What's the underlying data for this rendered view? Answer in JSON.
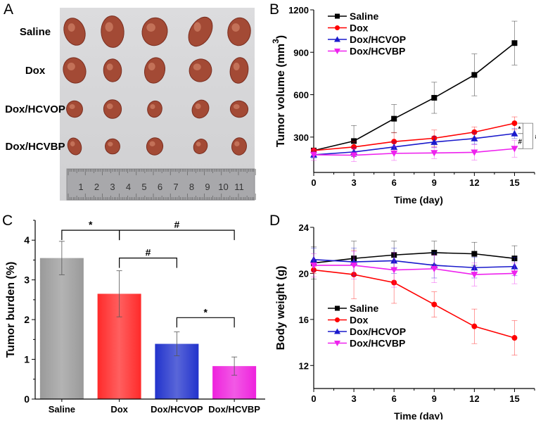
{
  "panel_labels": [
    "A",
    "B",
    "C",
    "D"
  ],
  "photo": {
    "row_labels": [
      "Saline",
      "Dox",
      "Dox/HCVOP",
      "Dox/HCVBP"
    ],
    "ruler_labels": [
      "1",
      "2",
      "3",
      "4",
      "5",
      "6",
      "7",
      "8",
      "9",
      "10",
      "11"
    ],
    "background_color": "#d6d6d8",
    "tumor_color": "#a34a35"
  },
  "chart_data": [
    {
      "panel": "B",
      "type": "line",
      "xlabel": "Time  (day)",
      "ylabel": "Tumor volume (mm",
      "ylabel_superscript": "3",
      "ylabel_close": ")",
      "x": [
        0,
        3,
        6,
        9,
        12,
        15
      ],
      "xlim": [
        0,
        16.5
      ],
      "ylim": [
        50,
        1200
      ],
      "xticks": [
        0,
        3,
        6,
        9,
        12,
        15
      ],
      "yticks": [
        300,
        600,
        900,
        1200
      ],
      "grid": false,
      "legend": "top-left",
      "series": [
        {
          "name": "Saline",
          "color": "#000000",
          "marker": "square",
          "values": [
            205,
            272,
            430,
            578,
            740,
            965
          ],
          "errors": [
            0,
            110,
            100,
            110,
            148,
            155
          ]
        },
        {
          "name": "Dox",
          "color": "#ff0000",
          "marker": "circle",
          "values": [
            205,
            230,
            268,
            292,
            335,
            398
          ],
          "errors": [
            0,
            40,
            65,
            58,
            37,
            45
          ]
        },
        {
          "name": "Dox/HCVOP",
          "color": "#1a1acc",
          "marker": "triangle-up",
          "values": [
            175,
            195,
            230,
            265,
            290,
            325
          ],
          "errors": [
            25,
            30,
            35,
            40,
            40,
            35
          ]
        },
        {
          "name": "Dox/HCVBP",
          "color": "#ee22ee",
          "marker": "triangle-down",
          "values": [
            175,
            172,
            185,
            188,
            192,
            218
          ],
          "errors": [
            40,
            45,
            50,
            40,
            55,
            60
          ]
        }
      ],
      "significance": [
        {
          "from": "Dox",
          "to": "Dox/HCVOP",
          "label": "*"
        },
        {
          "from": "Dox/HCVOP",
          "to": "Dox/HCVBP",
          "label": "#"
        },
        {
          "from": "Dox",
          "to": "Dox/HCVBP",
          "label": "#"
        }
      ]
    },
    {
      "panel": "C",
      "type": "bar",
      "xlabel": "",
      "ylabel": "Tumor burden (%)",
      "categories": [
        "Saline",
        "Dox",
        "Dox/HCVOP",
        "Dox/HCVBP"
      ],
      "values": [
        3.55,
        2.65,
        1.39,
        0.83
      ],
      "errors": [
        0.42,
        0.58,
        0.3,
        0.23
      ],
      "colors": [
        "#9a9a9a",
        "#ff2a2a",
        "#2233cc",
        "#ee22dd"
      ],
      "ylim": [
        0,
        4.5
      ],
      "yticks": [
        0,
        1,
        2,
        3,
        4
      ],
      "grid": false,
      "significance": [
        {
          "from": "Saline",
          "to": "Dox",
          "label": "*",
          "level": 4.25
        },
        {
          "from": "Dox",
          "to": "Dox/HCVBP",
          "label": "#",
          "level": 4.25
        },
        {
          "from": "Dox",
          "to": "Dox/HCVOP",
          "label": "#",
          "level": 3.55
        },
        {
          "from": "Dox/HCVOP",
          "to": "Dox/HCVBP",
          "label": "*",
          "level": 2.05
        }
      ]
    },
    {
      "panel": "D",
      "type": "line",
      "xlabel": "Time  (day)",
      "ylabel": "Body weight (g)",
      "x": [
        0,
        3,
        6,
        9,
        12,
        15
      ],
      "xlim": [
        0,
        16.5
      ],
      "ylim": [
        10,
        24
      ],
      "xticks": [
        0,
        3,
        6,
        9,
        12,
        15
      ],
      "yticks": [
        12,
        16,
        20,
        24
      ],
      "grid": false,
      "legend": "bottom-left",
      "series": [
        {
          "name": "Saline",
          "color": "#000000",
          "marker": "square",
          "values": [
            20.9,
            21.3,
            21.6,
            21.8,
            21.7,
            21.3
          ],
          "errors": [
            1.4,
            1.5,
            1.2,
            1.0,
            1.0,
            1.1
          ]
        },
        {
          "name": "Dox",
          "color": "#ff0000",
          "marker": "circle",
          "values": [
            20.3,
            19.9,
            19.2,
            17.3,
            15.4,
            14.4
          ],
          "errors": [
            0.3,
            2.1,
            1.8,
            1.1,
            1.5,
            1.5
          ]
        },
        {
          "name": "Dox/HCVOP",
          "color": "#1a1acc",
          "marker": "triangle-up",
          "values": [
            21.2,
            21.0,
            21.1,
            20.7,
            20.5,
            20.6
          ],
          "errors": [
            1.0,
            1.2,
            1.1,
            1.1,
            0.9,
            0.8
          ]
        },
        {
          "name": "Dox/HCVBP",
          "color": "#ee22ee",
          "marker": "triangle-down",
          "values": [
            20.7,
            20.7,
            20.3,
            20.4,
            19.9,
            20.0
          ],
          "errors": [
            1.0,
            1.2,
            1.5,
            1.2,
            1.0,
            0.9
          ]
        }
      ]
    }
  ]
}
